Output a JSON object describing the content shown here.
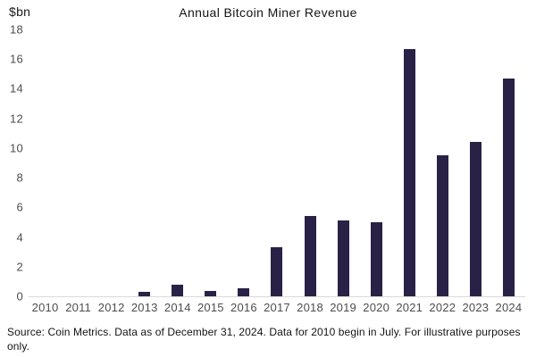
{
  "chart_data": {
    "type": "bar",
    "title": "Annual Bitcoin Miner Revenue",
    "unit_label": "$bn",
    "categories": [
      "2010",
      "2011",
      "2012",
      "2013",
      "2014",
      "2015",
      "2016",
      "2017",
      "2018",
      "2019",
      "2020",
      "2021",
      "2022",
      "2023",
      "2024"
    ],
    "values": [
      0,
      0,
      0,
      0.3,
      0.8,
      0.35,
      0.55,
      3.3,
      5.4,
      5.1,
      5.0,
      16.7,
      9.5,
      10.4,
      14.7
    ],
    "ylabel": "",
    "xlabel": "",
    "ylim": [
      0,
      18
    ],
    "ytick_step": 2,
    "grid": false,
    "legend": false,
    "bar_color": "#2a2147",
    "axis_line_color": "#d9d9d9"
  },
  "footer": {
    "source_text": "Source: Coin Metrics. Data as of December 31, 2024. Data for 2010 begin in July. For illustrative purposes only."
  }
}
